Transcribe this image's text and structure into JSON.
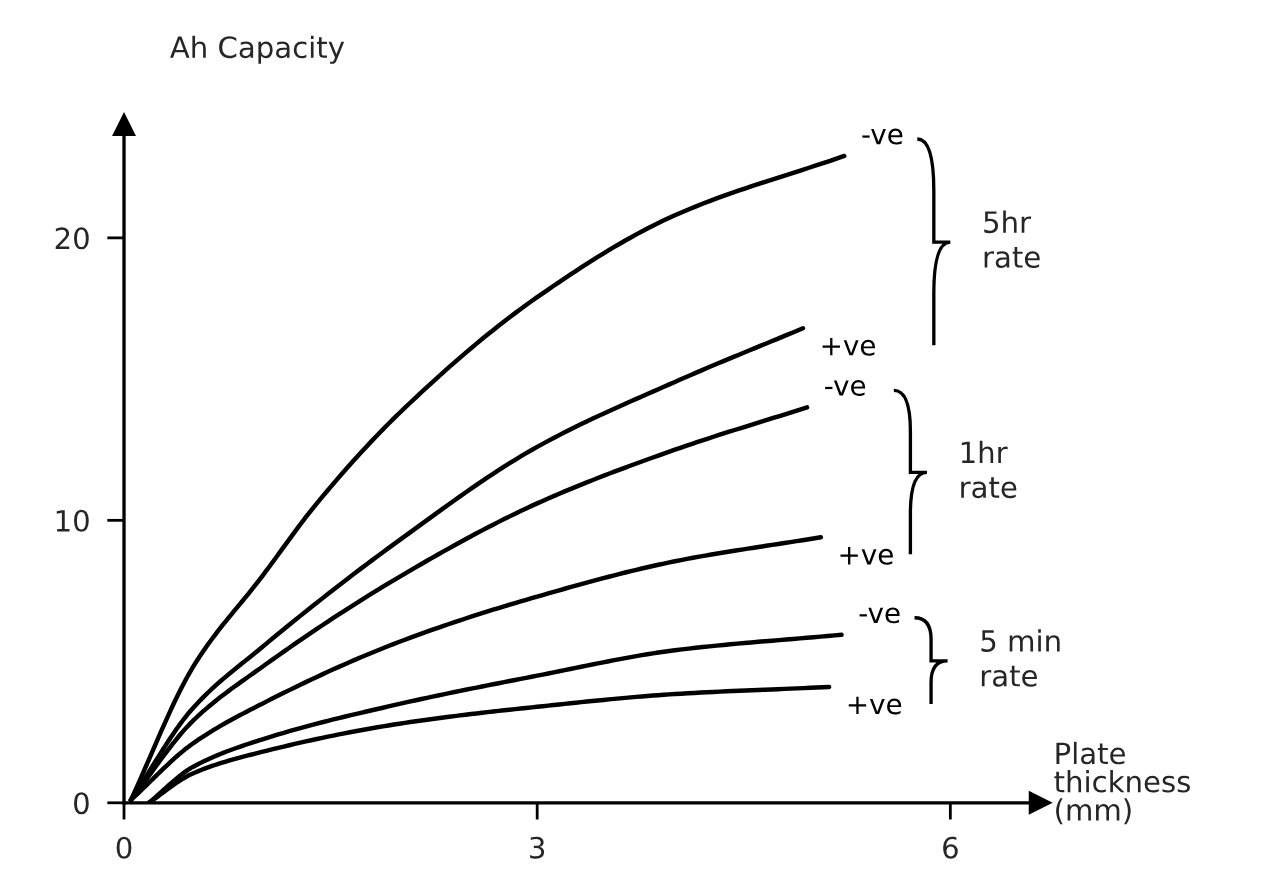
{
  "chart_data": {
    "type": "line",
    "ylabel": "Ah Capacity",
    "xlabel": "Plate\nthickness\n(mm)",
    "xlim": [
      0,
      6.65
    ],
    "ylim": [
      0,
      24
    ],
    "xticks": [
      {
        "value": 0,
        "label": "0"
      },
      3,
      6
    ],
    "yticks": [
      {
        "value": 0,
        "label": "0"
      },
      10,
      20
    ],
    "grid": false,
    "legend": false,
    "marker": "none",
    "line_style": "solid",
    "series": [
      {
        "name": "-ve",
        "color": "#000000",
        "x": [
          0.05,
          0.5,
          1,
          1.4,
          2,
          3,
          4,
          5.23
        ],
        "values": [
          0.1,
          4.8,
          8.0,
          10.6,
          13.8,
          17.9,
          20.8,
          22.9
        ]
      },
      {
        "name": "+ve",
        "color": "#000000",
        "x": [
          0.05,
          0.5,
          1,
          2,
          3,
          4,
          4.93
        ],
        "values": [
          0.1,
          3.35,
          5.5,
          9.3,
          12.6,
          14.9,
          16.8
        ]
      },
      {
        "name": "-ve",
        "color": "#000000",
        "x": [
          0.05,
          0.5,
          1,
          2,
          3,
          4,
          4.96
        ],
        "values": [
          0.1,
          2.9,
          4.8,
          8.0,
          10.6,
          12.5,
          14.0
        ]
      },
      {
        "name": "+ve",
        "color": "#000000",
        "x": [
          0.05,
          0.5,
          1,
          2,
          3,
          4,
          5.06
        ],
        "values": [
          0.1,
          2.1,
          3.5,
          5.7,
          7.3,
          8.55,
          9.4
        ]
      },
      {
        "name": "-ve",
        "color": "#000000",
        "x": [
          0.18,
          0.5,
          1,
          2,
          3,
          4,
          5.21
        ],
        "values": [
          0,
          1.27,
          2.24,
          3.5,
          4.5,
          5.4,
          5.95
        ]
      },
      {
        "name": "+ve",
        "color": "#000000",
        "x": [
          0.18,
          0.5,
          1,
          2,
          3,
          4,
          5.12
        ],
        "values": [
          0,
          1.04,
          1.8,
          2.8,
          3.4,
          3.85,
          4.1
        ]
      }
    ],
    "annotations": [
      "5hr\nrate",
      "1hr\nrate",
      "5 min\nrate"
    ]
  }
}
